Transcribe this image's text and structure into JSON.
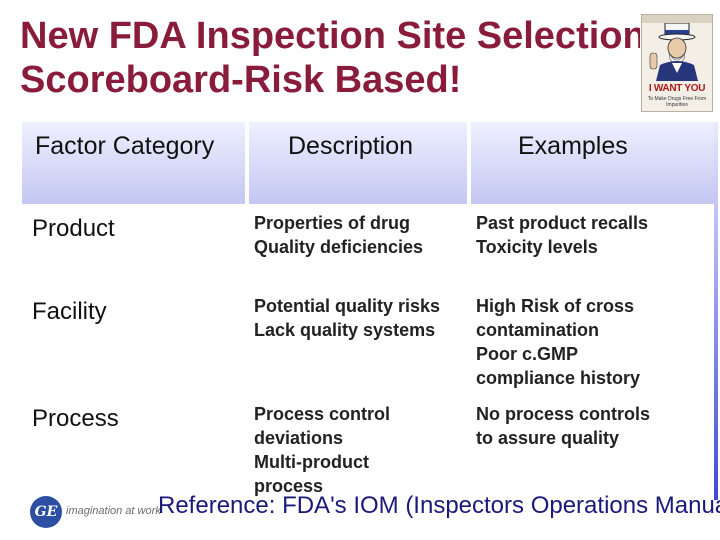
{
  "slide": {
    "title_line1": "New FDA Inspection Site Selection",
    "title_line2": "Scoreboard-Risk Based!"
  },
  "poster": {
    "icon": "uncle-sam-poster-icon",
    "headline": "I WANT YOU",
    "subtext": "To Make Drugs Free From Impurities"
  },
  "table": {
    "headers": [
      "Factor Category",
      "Description",
      "Examples"
    ],
    "rows": [
      {
        "category": "Product",
        "description": [
          "Properties of drug",
          "Quality deficiencies"
        ],
        "examples": [
          "Past product recalls",
          "Toxicity levels"
        ]
      },
      {
        "category": "Facility",
        "description": [
          "Potential quality risks",
          "Lack quality systems"
        ],
        "examples": [
          "High Risk of cross",
          "contamination",
          "Poor c.GMP",
          "compliance history"
        ]
      },
      {
        "category": "Process",
        "description": [
          "Process control",
          "deviations",
          "Multi-product",
          "process"
        ],
        "examples": [
          "No process controls",
          "to assure quality"
        ]
      }
    ]
  },
  "footer": {
    "logo_mark": "GE",
    "logo_text": "imagination at work",
    "reference": "Reference: FDA's IOM (Inspectors Operations Manual"
  },
  "colors": {
    "title": "#8a1c3b",
    "header_gradient_top": "#eff0ff",
    "header_gradient_bottom": "#c3c7f2",
    "reference_text": "#1a1a7a",
    "ge_blue": "#2d4fa3"
  }
}
